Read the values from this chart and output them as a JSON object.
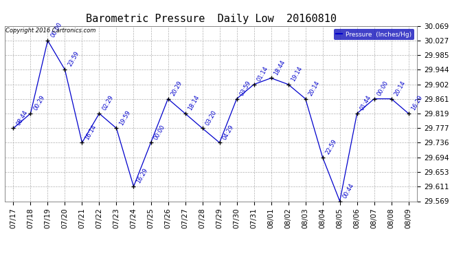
{
  "title": "Barometric Pressure  Daily Low  20160810",
  "copyright": "Copyright 2016 Cartronics.com",
  "background_color": "#ffffff",
  "line_color": "#0000cc",
  "label_color": "#0000cc",
  "ylim": [
    29.569,
    30.069
  ],
  "yticks": [
    29.569,
    29.611,
    29.653,
    29.694,
    29.736,
    29.777,
    29.819,
    29.861,
    29.902,
    29.944,
    29.985,
    30.027,
    30.069
  ],
  "dates": [
    "07/17",
    "07/18",
    "07/19",
    "07/20",
    "07/21",
    "07/22",
    "07/23",
    "07/24",
    "07/25",
    "07/26",
    "07/27",
    "07/28",
    "07/29",
    "07/30",
    "07/31",
    "08/01",
    "08/02",
    "08/03",
    "08/04",
    "08/05",
    "08/06",
    "08/07",
    "08/08",
    "08/09"
  ],
  "x_indices": [
    0,
    1,
    2,
    3,
    4,
    5,
    6,
    7,
    8,
    9,
    10,
    11,
    12,
    13,
    14,
    15,
    16,
    17,
    18,
    19,
    20,
    21,
    22,
    23
  ],
  "values": [
    29.777,
    29.819,
    30.027,
    29.944,
    29.736,
    29.819,
    29.777,
    29.611,
    29.736,
    29.861,
    29.819,
    29.777,
    29.736,
    29.861,
    29.902,
    29.92,
    29.902,
    29.861,
    29.694,
    29.569,
    29.819,
    29.861,
    29.861,
    29.819
  ],
  "time_labels": [
    "08:44",
    "00:29",
    "00:00",
    "23:59",
    "16:14",
    "02:29",
    "19:59",
    "16:29",
    "00:00",
    "20:29",
    "18:14",
    "03:20",
    "04:29",
    "03:59",
    "01:14",
    "18:44",
    "19:14",
    "20:14",
    "22:59",
    "00:44",
    "01:44",
    "00:00",
    "20:14",
    "16:29"
  ],
  "title_fontsize": 11,
  "tick_fontsize": 7.5,
  "time_label_fontsize": 6.0,
  "legend_text": "Pressure  (Inches/Hg)"
}
